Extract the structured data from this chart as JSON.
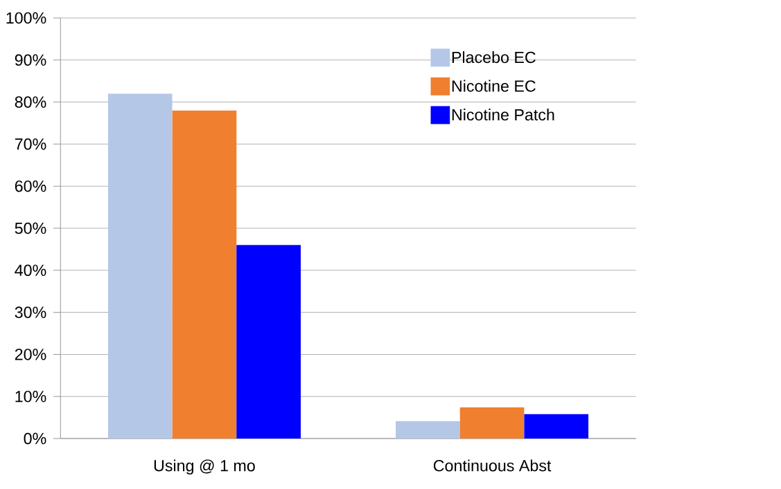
{
  "chart_data": {
    "type": "bar",
    "categories": [
      "Using @ 1 mo",
      "Continuous Abst"
    ],
    "series": [
      {
        "name": "Placebo EC",
        "color": "#b4c7e7",
        "values": [
          82,
          4.1
        ]
      },
      {
        "name": "Nicotine EC",
        "color": "#f07f2f",
        "values": [
          78,
          7.4
        ]
      },
      {
        "name": "Nicotine Patch",
        "color": "#0000ff",
        "values": [
          46,
          5.8
        ]
      }
    ],
    "ylim": [
      0,
      100
    ],
    "yticks": [
      {
        "value": 0,
        "label": "0%"
      },
      {
        "value": 10,
        "label": "10%"
      },
      {
        "value": 20,
        "label": "20%"
      },
      {
        "value": 30,
        "label": "30%"
      },
      {
        "value": 40,
        "label": "40%"
      },
      {
        "value": 50,
        "label": "50%"
      },
      {
        "value": 60,
        "label": "60%"
      },
      {
        "value": 70,
        "label": "70%"
      },
      {
        "value": 80,
        "label": "80%"
      },
      {
        "value": 90,
        "label": "90%"
      },
      {
        "value": 100,
        "label": "100%"
      }
    ],
    "grid": "y",
    "legend": "top right"
  }
}
